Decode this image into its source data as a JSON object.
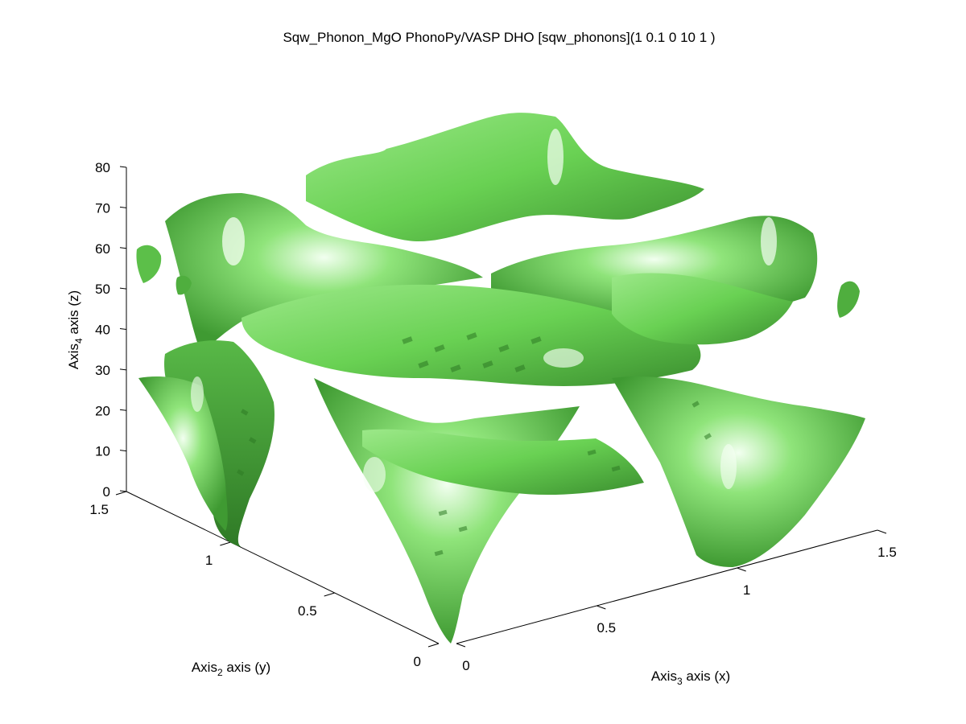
{
  "chart_data": {
    "type": "surface3d",
    "title": "Sqw_Phonon_MgO PhonoPy/VASP DHO [sqw_phonons](1 0.1 0 10 1 )",
    "xlabel": {
      "base": "Axis",
      "sub": "3",
      "rest": " axis (x)"
    },
    "ylabel": {
      "base": "Axis",
      "sub": "2",
      "rest": " axis (y)"
    },
    "zlabel": {
      "base": "Axis",
      "sub": "4",
      "rest": " axis (z)"
    },
    "xlim": [
      0,
      1.5
    ],
    "ylim": [
      0,
      1.5
    ],
    "zlim": [
      0,
      80
    ],
    "xticks": [
      "0",
      "0.5",
      "1",
      "1.5"
    ],
    "yticks": [
      "0",
      "0.5",
      "1",
      "1.5"
    ],
    "zticks": [
      "0",
      "10",
      "20",
      "30",
      "40",
      "50",
      "60",
      "70",
      "80"
    ],
    "surface_color": "#6fdc5a",
    "grid": false,
    "description": ""
  }
}
